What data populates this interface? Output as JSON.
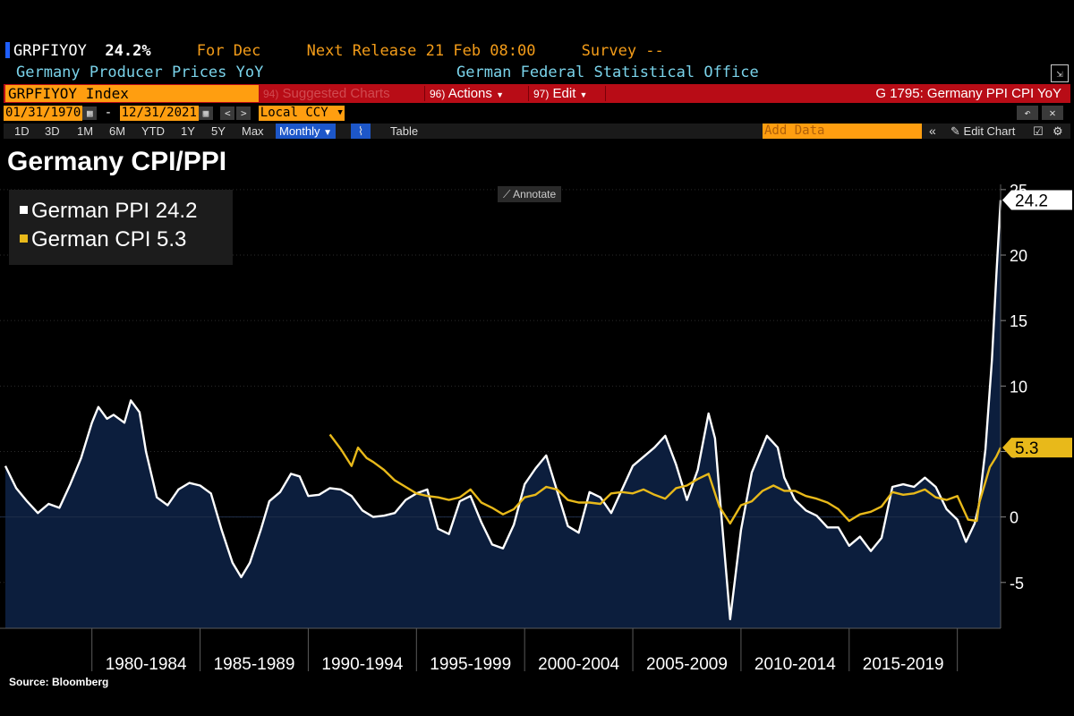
{
  "header": {
    "ticker": "GRPFIYOY",
    "value": "24.2%",
    "for_label": "For Dec",
    "next_release": "Next Release 21 Feb 08:00",
    "survey": "Survey --",
    "description": "Germany Producer Prices YoY",
    "source_agency": "German Federal Statistical Office"
  },
  "command_bar": {
    "ticker_input": "GRPFIYOY Index",
    "suggested_num": "94)",
    "suggested": "Suggested Charts",
    "actions_num": "96)",
    "actions": "Actions",
    "edit_num": "97)",
    "edit": "Edit",
    "chart_id": "G 1795: Germany PPI CPI YoY"
  },
  "date_row": {
    "start": "01/31/1970",
    "end": "12/31/2021",
    "currency": "Local CCY"
  },
  "period_row": {
    "buttons": [
      "1D",
      "3D",
      "1M",
      "6M",
      "YTD",
      "1Y",
      "5Y",
      "Max"
    ],
    "frequency": "Monthly",
    "table": "Table",
    "add_data_placeholder": "Add Data",
    "edit_chart": "Edit Chart"
  },
  "annotate": "Annotate",
  "source": "Source: Bloomberg",
  "colors": {
    "ppi": "#ffffff",
    "cpi": "#e8b91a",
    "fill": "#0c1e3d",
    "accent_orange": "#ff9e10",
    "bar_red": "#b80c16"
  },
  "chart_data": {
    "type": "line",
    "title": "Germany CPI/PPI",
    "ylim": [
      -8,
      25
    ],
    "yticks": [
      -5,
      0,
      5,
      10,
      15,
      20,
      25
    ],
    "x_period_labels": [
      "1980-1984",
      "1985-1989",
      "1990-1994",
      "1995-1999",
      "2000-2004",
      "2005-2009",
      "2010-2014",
      "2015-2019"
    ],
    "legend_position": "top-left",
    "series": [
      {
        "name": "German PPI",
        "legend": "German PPI 24.2",
        "last_label": "24.2",
        "points": [
          [
            1976.0,
            3.9
          ],
          [
            1976.5,
            2.2
          ],
          [
            1977.0,
            1.2
          ],
          [
            1977.5,
            0.3
          ],
          [
            1978.0,
            1.0
          ],
          [
            1978.5,
            0.7
          ],
          [
            1979.0,
            2.5
          ],
          [
            1979.5,
            4.5
          ],
          [
            1980.0,
            7.2
          ],
          [
            1980.3,
            8.4
          ],
          [
            1980.7,
            7.5
          ],
          [
            1981.0,
            7.8
          ],
          [
            1981.5,
            7.2
          ],
          [
            1981.8,
            8.9
          ],
          [
            1982.2,
            8.0
          ],
          [
            1982.5,
            5.0
          ],
          [
            1983.0,
            1.5
          ],
          [
            1983.5,
            0.9
          ],
          [
            1984.0,
            2.1
          ],
          [
            1984.5,
            2.6
          ],
          [
            1985.0,
            2.4
          ],
          [
            1985.5,
            1.8
          ],
          [
            1986.0,
            -1.0
          ],
          [
            1986.5,
            -3.5
          ],
          [
            1986.9,
            -4.6
          ],
          [
            1987.3,
            -3.5
          ],
          [
            1987.8,
            -1.0
          ],
          [
            1988.2,
            1.2
          ],
          [
            1988.7,
            1.9
          ],
          [
            1989.2,
            3.3
          ],
          [
            1989.6,
            3.1
          ],
          [
            1990.0,
            1.6
          ],
          [
            1990.5,
            1.7
          ],
          [
            1991.0,
            2.2
          ],
          [
            1991.5,
            2.1
          ],
          [
            1992.0,
            1.6
          ],
          [
            1992.5,
            0.5
          ],
          [
            1993.0,
            0.0
          ],
          [
            1993.5,
            0.1
          ],
          [
            1994.0,
            0.3
          ],
          [
            1994.5,
            1.3
          ],
          [
            1995.0,
            1.8
          ],
          [
            1995.5,
            2.1
          ],
          [
            1996.0,
            -0.9
          ],
          [
            1996.5,
            -1.3
          ],
          [
            1997.0,
            1.2
          ],
          [
            1997.5,
            1.6
          ],
          [
            1998.0,
            -0.4
          ],
          [
            1998.5,
            -2.1
          ],
          [
            1999.0,
            -2.4
          ],
          [
            1999.5,
            -0.6
          ],
          [
            2000.0,
            2.5
          ],
          [
            2000.5,
            3.7
          ],
          [
            2001.0,
            4.7
          ],
          [
            2001.5,
            2.0
          ],
          [
            2002.0,
            -0.7
          ],
          [
            2002.5,
            -1.2
          ],
          [
            2003.0,
            1.9
          ],
          [
            2003.5,
            1.5
          ],
          [
            2004.0,
            0.3
          ],
          [
            2004.5,
            2.1
          ],
          [
            2005.0,
            3.9
          ],
          [
            2005.5,
            4.6
          ],
          [
            2006.0,
            5.3
          ],
          [
            2006.5,
            6.2
          ],
          [
            2007.0,
            4.0
          ],
          [
            2007.5,
            1.3
          ],
          [
            2008.0,
            3.6
          ],
          [
            2008.5,
            7.9
          ],
          [
            2008.8,
            6.0
          ],
          [
            2009.0,
            2.0
          ],
          [
            2009.5,
            -7.8
          ],
          [
            2010.0,
            -1.0
          ],
          [
            2010.5,
            3.4
          ],
          [
            2011.0,
            5.4
          ],
          [
            2011.2,
            6.2
          ],
          [
            2011.7,
            5.3
          ],
          [
            2012.0,
            3.0
          ],
          [
            2012.5,
            1.3
          ],
          [
            2013.0,
            0.5
          ],
          [
            2013.5,
            0.1
          ],
          [
            2014.0,
            -0.8
          ],
          [
            2014.5,
            -0.8
          ],
          [
            2015.0,
            -2.2
          ],
          [
            2015.5,
            -1.5
          ],
          [
            2016.0,
            -2.6
          ],
          [
            2016.5,
            -1.6
          ],
          [
            2017.0,
            2.3
          ],
          [
            2017.5,
            2.5
          ],
          [
            2018.0,
            2.3
          ],
          [
            2018.5,
            3.0
          ],
          [
            2019.0,
            2.3
          ],
          [
            2019.5,
            0.6
          ],
          [
            2020.0,
            -0.2
          ],
          [
            2020.4,
            -1.9
          ],
          [
            2020.8,
            -0.5
          ],
          [
            2021.0,
            0.9
          ],
          [
            2021.3,
            5.2
          ],
          [
            2021.6,
            12.0
          ],
          [
            2021.8,
            18.4
          ],
          [
            2022.0,
            24.2
          ]
        ]
      },
      {
        "name": "German CPI",
        "legend": "German CPI 5.3",
        "last_label": "5.3",
        "points": [
          [
            1991.0,
            6.3
          ],
          [
            1991.5,
            5.2
          ],
          [
            1992.0,
            3.9
          ],
          [
            1992.3,
            5.3
          ],
          [
            1992.7,
            4.5
          ],
          [
            1993.0,
            4.2
          ],
          [
            1993.5,
            3.6
          ],
          [
            1994.0,
            2.8
          ],
          [
            1994.5,
            2.3
          ],
          [
            1995.0,
            1.8
          ],
          [
            1995.5,
            1.6
          ],
          [
            1996.0,
            1.5
          ],
          [
            1996.5,
            1.3
          ],
          [
            1997.0,
            1.5
          ],
          [
            1997.5,
            2.1
          ],
          [
            1998.0,
            1.1
          ],
          [
            1998.5,
            0.7
          ],
          [
            1999.0,
            0.2
          ],
          [
            1999.5,
            0.6
          ],
          [
            2000.0,
            1.5
          ],
          [
            2000.5,
            1.7
          ],
          [
            2001.0,
            2.3
          ],
          [
            2001.5,
            2.1
          ],
          [
            2002.0,
            1.3
          ],
          [
            2002.5,
            1.1
          ],
          [
            2003.0,
            1.1
          ],
          [
            2003.5,
            1.0
          ],
          [
            2004.0,
            1.8
          ],
          [
            2004.5,
            1.9
          ],
          [
            2005.0,
            1.8
          ],
          [
            2005.5,
            2.1
          ],
          [
            2006.0,
            1.7
          ],
          [
            2006.5,
            1.4
          ],
          [
            2007.0,
            2.2
          ],
          [
            2007.5,
            2.4
          ],
          [
            2008.0,
            2.9
          ],
          [
            2008.5,
            3.3
          ],
          [
            2009.0,
            0.8
          ],
          [
            2009.5,
            -0.5
          ],
          [
            2010.0,
            0.9
          ],
          [
            2010.5,
            1.2
          ],
          [
            2011.0,
            2.0
          ],
          [
            2011.5,
            2.4
          ],
          [
            2012.0,
            2.0
          ],
          [
            2012.5,
            2.0
          ],
          [
            2013.0,
            1.6
          ],
          [
            2013.5,
            1.4
          ],
          [
            2014.0,
            1.1
          ],
          [
            2014.5,
            0.6
          ],
          [
            2015.0,
            -0.3
          ],
          [
            2015.5,
            0.2
          ],
          [
            2016.0,
            0.4
          ],
          [
            2016.5,
            0.8
          ],
          [
            2017.0,
            1.9
          ],
          [
            2017.5,
            1.7
          ],
          [
            2018.0,
            1.8
          ],
          [
            2018.5,
            2.1
          ],
          [
            2019.0,
            1.5
          ],
          [
            2019.5,
            1.3
          ],
          [
            2020.0,
            1.6
          ],
          [
            2020.5,
            -0.2
          ],
          [
            2020.9,
            -0.3
          ],
          [
            2021.0,
            1.0
          ],
          [
            2021.5,
            3.8
          ],
          [
            2021.8,
            4.6
          ],
          [
            2022.0,
            5.3
          ]
        ]
      }
    ]
  }
}
